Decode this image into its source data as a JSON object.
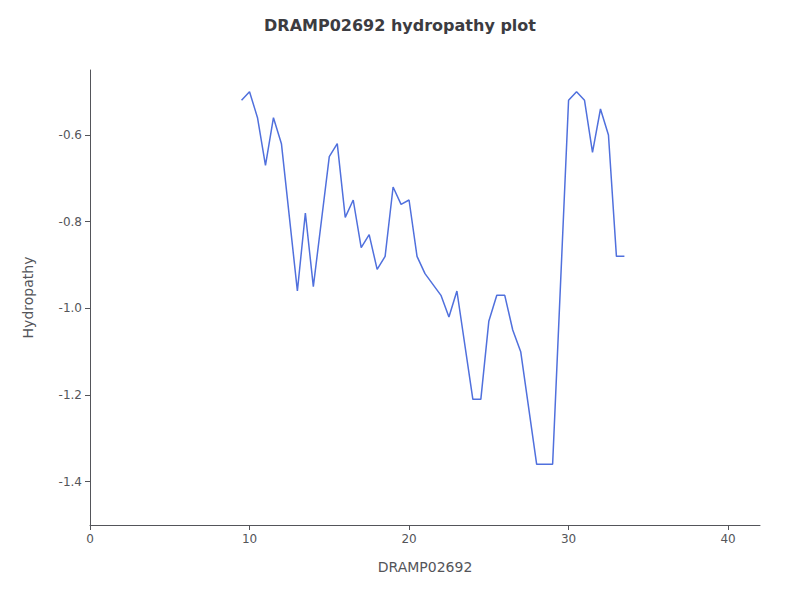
{
  "chart_data": {
    "type": "line",
    "title": "DRAMP02692 hydropathy plot",
    "xlabel": "DRAMP02692",
    "ylabel": "Hydropathy",
    "x": [
      9.5,
      10.0,
      10.5,
      11.0,
      11.5,
      12.0,
      13.0,
      13.5,
      14.0,
      15.0,
      15.5,
      16.0,
      16.5,
      17.0,
      17.5,
      18.0,
      18.5,
      19.0,
      19.5,
      20.0,
      20.5,
      21.0,
      22.0,
      22.5,
      23.0,
      24.0,
      24.5,
      25.0,
      25.5,
      26.0,
      26.5,
      27.0,
      28.0,
      29.0,
      30.0,
      30.5,
      31.0,
      31.5,
      32.0,
      32.5,
      33.0,
      33.5
    ],
    "values": [
      -0.52,
      -0.5,
      -0.56,
      -0.67,
      -0.56,
      -0.62,
      -0.96,
      -0.78,
      -0.95,
      -0.65,
      -0.62,
      -0.79,
      -0.75,
      -0.86,
      -0.83,
      -0.91,
      -0.88,
      -0.72,
      -0.76,
      -0.75,
      -0.88,
      -0.92,
      -0.97,
      -1.02,
      -0.96,
      -1.21,
      -1.21,
      -1.03,
      -0.97,
      -0.97,
      -1.05,
      -1.1,
      -1.36,
      -1.36,
      -0.52,
      -0.5,
      -0.52,
      -0.64,
      -0.54,
      -0.6,
      -0.88,
      -0.88
    ],
    "xlim": [
      0,
      42
    ],
    "ylim": [
      -1.5,
      -0.45
    ],
    "xticks": [
      0,
      10,
      20,
      30,
      40
    ],
    "yticks": [
      -1.4,
      -1.2,
      {
        "value": -1.0,
        "label": "-1.0"
      },
      -0.8,
      -0.6
    ],
    "grid": false
  }
}
